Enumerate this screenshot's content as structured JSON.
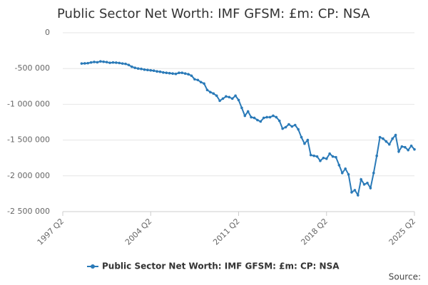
{
  "chart_data": {
    "type": "line",
    "title": "Public Sector Net Worth: IMF GFSM: £m: CP: NSA",
    "source": "Source:",
    "categories": [
      "1997 Q2",
      null,
      null,
      null,
      null,
      null,
      null,
      null,
      null,
      null,
      null,
      null,
      null,
      null,
      null,
      null,
      null,
      null,
      null,
      null,
      null,
      null,
      null,
      null,
      null,
      null,
      null,
      null,
      "2004 Q2",
      null,
      null,
      null,
      null,
      null,
      null,
      null,
      null,
      null,
      null,
      null,
      null,
      null,
      null,
      null,
      null,
      null,
      null,
      null,
      null,
      null,
      null,
      null,
      null,
      null,
      null,
      null,
      "2011 Q2",
      null,
      null,
      null,
      null,
      null,
      null,
      null,
      null,
      null,
      null,
      null,
      null,
      null,
      null,
      null,
      null,
      null,
      null,
      null,
      null,
      null,
      null,
      null,
      null,
      null,
      null,
      null,
      "2018 Q2",
      null,
      null,
      null,
      null,
      null,
      null,
      null,
      null,
      null,
      null,
      null,
      null,
      null,
      null,
      null,
      null,
      null,
      null,
      null,
      null,
      null,
      null,
      null,
      null,
      null,
      null,
      null,
      "2025 Q2"
    ],
    "series": [
      {
        "name": "Public Sector Net Worth: IMF GFSM: £m: CP: NSA",
        "color": "#2a7ab8",
        "values": [
          null,
          null,
          null,
          null,
          null,
          null,
          -430000,
          -428000,
          -425000,
          -415000,
          -408000,
          -412000,
          -400000,
          -405000,
          -410000,
          -420000,
          -415000,
          -418000,
          -422000,
          -430000,
          -435000,
          -450000,
          -475000,
          -490000,
          -500000,
          -505000,
          -515000,
          -520000,
          -525000,
          -530000,
          -540000,
          -545000,
          -555000,
          -560000,
          -565000,
          -570000,
          -575000,
          -560000,
          -560000,
          -570000,
          -580000,
          -600000,
          -650000,
          -660000,
          -690000,
          -710000,
          -800000,
          -830000,
          -850000,
          -880000,
          -950000,
          -920000,
          -890000,
          -900000,
          -920000,
          -880000,
          -940000,
          -1050000,
          -1160000,
          -1100000,
          -1180000,
          -1190000,
          -1220000,
          -1240000,
          -1190000,
          -1180000,
          -1180000,
          -1160000,
          -1180000,
          -1230000,
          -1340000,
          -1320000,
          -1280000,
          -1310000,
          -1290000,
          -1350000,
          -1460000,
          -1550000,
          -1500000,
          -1710000,
          -1720000,
          -1730000,
          -1790000,
          -1750000,
          -1760000,
          -1690000,
          -1730000,
          -1740000,
          -1850000,
          -1960000,
          -1900000,
          -1980000,
          -2230000,
          -2200000,
          -2270000,
          -2050000,
          -2120000,
          -2100000,
          -2170000,
          -1960000,
          -1720000,
          -1460000,
          -1480000,
          -1520000,
          -1560000,
          -1480000,
          -1430000,
          -1660000,
          -1590000,
          -1600000,
          -1640000,
          -1580000,
          -1630000
        ]
      }
    ],
    "ylim": [
      -2500000,
      0
    ],
    "yticks": [
      0,
      {
        "value": -500000,
        "label": "-500 000"
      },
      {
        "value": -1000000,
        "label": "-1 000 000"
      },
      {
        "value": -1500000,
        "label": "-1 500 000"
      },
      {
        "value": -2000000,
        "label": "-2 000 000"
      },
      {
        "value": -2500000,
        "label": "-2 500 000"
      }
    ],
    "grid": true,
    "legend": "bottom"
  }
}
